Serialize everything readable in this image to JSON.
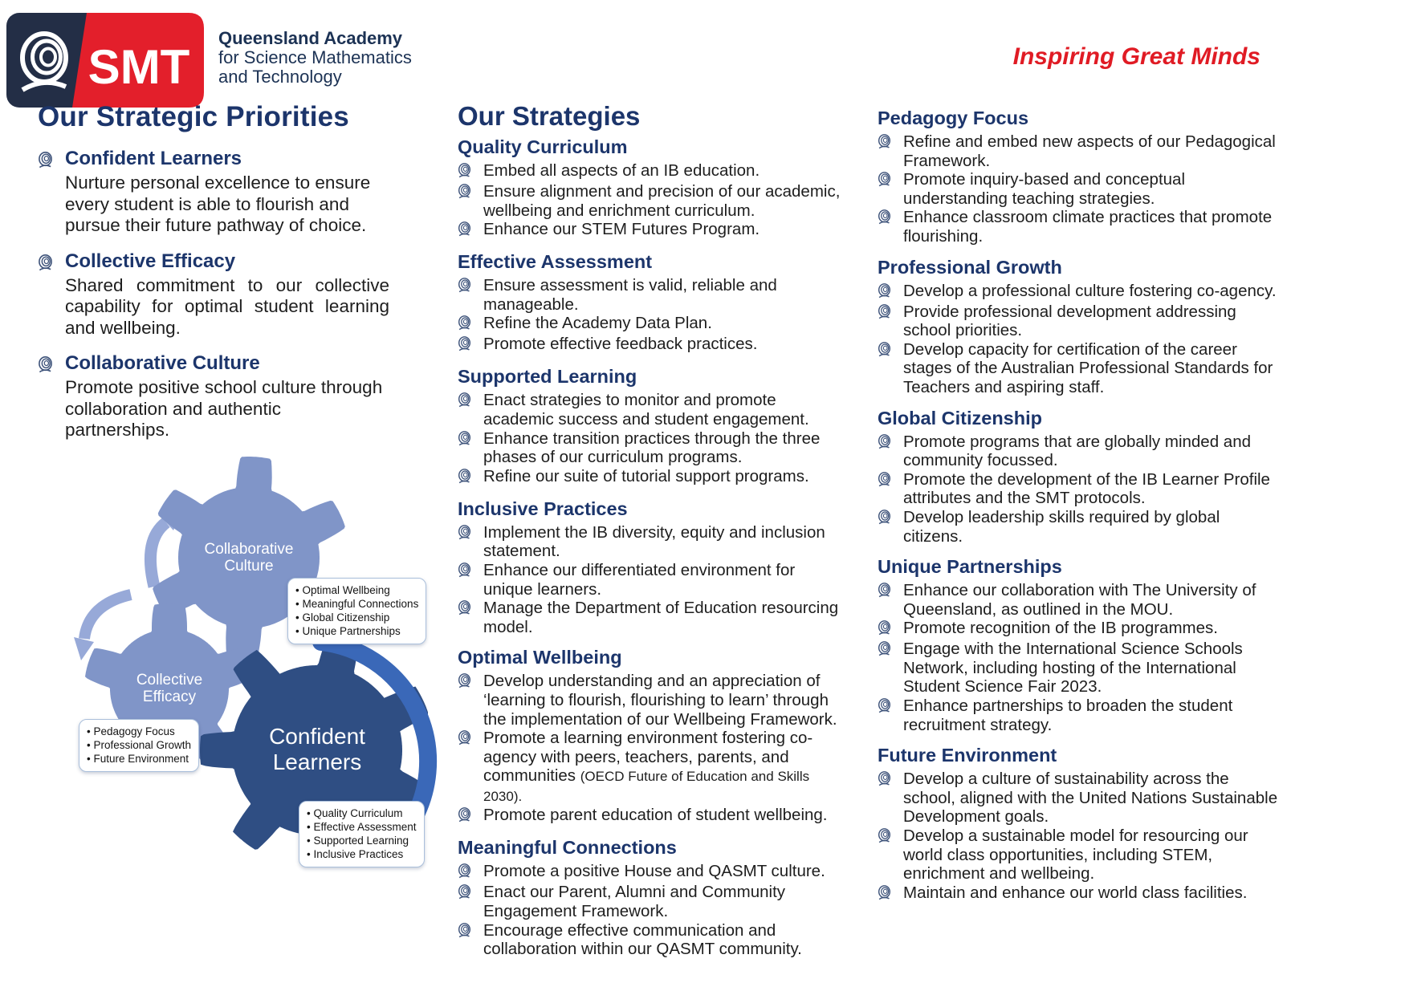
{
  "header": {
    "logo": {
      "acronym": "SMT",
      "mark_icon": "q-swirl-icon",
      "org_lines": [
        "Queensland Academy",
        "for Science Mathematics",
        "and Technology"
      ]
    },
    "tagline": "Inspiring Great Minds"
  },
  "colors": {
    "heading_navy": "#1c356b",
    "logo_navy": "#232e46",
    "brand_red": "#e31f2b",
    "tagline_red": "#e01b24",
    "gear_light_blue": "#8095c8",
    "gear_dark_blue": "#2f4e83",
    "arc_blue": "#3a68b8",
    "arrow_light_blue": "#97a9d8",
    "callout_border": "#aabfdb"
  },
  "strategic_priorities": {
    "title": "Our Strategic Priorities",
    "items": [
      {
        "title": "Confident Learners",
        "body": "Nurture personal excellence to ensure every student is able to flourish and pursue their future pathway of choice."
      },
      {
        "title": "Collective Efficacy",
        "body": "Shared commitment to our collective capability for optimal student learning and wellbeing."
      },
      {
        "title": "Collaborative Culture",
        "body": "Promote positive school culture through collaboration and authentic partnerships."
      }
    ]
  },
  "diagram": {
    "gears": [
      {
        "label_lines": [
          "Collaborative",
          "Culture"
        ],
        "callout": [
          "Optimal Wellbeing",
          "Meaningful Connections",
          "Global Citizenship",
          "Unique Partnerships"
        ]
      },
      {
        "label_lines": [
          "Collective",
          "Efficacy"
        ],
        "callout": [
          "Pedagogy Focus",
          "Professional Growth",
          "Future Environment"
        ]
      },
      {
        "label_lines": [
          "Confident",
          "Learners"
        ],
        "callout": [
          "Quality Curriculum",
          "Effective Assessment",
          "Supported Learning",
          "Inclusive Practices"
        ]
      }
    ],
    "arrows": [
      "cycle-arrow-upper",
      "cycle-arrow-left-down",
      "momentum-arc"
    ]
  },
  "strategies": {
    "title": "Our Strategies",
    "columns": [
      [
        {
          "heading": "Quality Curriculum",
          "bullets": [
            {
              "text": "Embed all aspects of an IB education."
            },
            {
              "text": "Ensure alignment and precision of our academic, wellbeing and enrichment curriculum."
            },
            {
              "text": "Enhance our STEM Futures Program."
            }
          ]
        },
        {
          "heading": "Effective Assessment",
          "bullets": [
            {
              "text": "Ensure assessment is valid, reliable and manageable."
            },
            {
              "text": "Refine the Academy Data Plan."
            },
            {
              "text": "Promote effective feedback practices."
            }
          ]
        },
        {
          "heading": "Supported Learning",
          "bullets": [
            {
              "text": "Enact strategies to monitor and promote academic success and student engagement."
            },
            {
              "text": "Enhance transition practices through the three phases of our curriculum programs."
            },
            {
              "text": "Refine our suite of tutorial support programs."
            }
          ]
        },
        {
          "heading": "Inclusive Practices",
          "bullets": [
            {
              "text": "Implement the IB diversity, equity and inclusion statement."
            },
            {
              "text": "Enhance our differentiated environment for unique learners."
            },
            {
              "text": "Manage the Department of Education resourcing model."
            }
          ]
        },
        {
          "heading": "Optimal Wellbeing",
          "bullets": [
            {
              "text": "Develop understanding and an appreciation of ‘learning to flourish, flourishing to learn’ through the implementation of our Wellbeing Framework."
            },
            {
              "text": "Promote a learning environment fostering co-agency with peers, teachers, parents, and communities ",
              "note": "(OECD Future of Education and Skills 2030)."
            },
            {
              "text": "Promote parent education of student wellbeing."
            }
          ]
        },
        {
          "heading": "Meaningful Connections",
          "bullets": [
            {
              "text": "Promote a positive House and QASMT culture."
            },
            {
              "text": "Enact our Parent, Alumni and Community Engagement Framework."
            },
            {
              "text": "Encourage effective communication and collaboration within our QASMT community."
            }
          ]
        }
      ],
      [
        {
          "heading": "Pedagogy Focus",
          "bullets": [
            {
              "text": "Refine and embed new aspects of our Pedagogical Framework."
            },
            {
              "text": "Promote inquiry-based and conceptual understanding teaching strategies."
            },
            {
              "text": "Enhance classroom climate practices that promote flourishing."
            }
          ]
        },
        {
          "heading": "Professional Growth",
          "bullets": [
            {
              "text": "Develop a professional culture fostering co-agency."
            },
            {
              "text": "Provide professional development addressing school priorities."
            },
            {
              "text": "Develop capacity for certification of the career stages of the Australian Professional Standards for Teachers and aspiring staff."
            }
          ]
        },
        {
          "heading": "Global Citizenship",
          "bullets": [
            {
              "text": "Promote programs that are globally minded and community focussed."
            },
            {
              "text": "Promote the development of the IB Learner Profile attributes and the SMT protocols."
            },
            {
              "text": "Develop leadership skills required by global citizens."
            }
          ]
        },
        {
          "heading": "Unique Partnerships",
          "bullets": [
            {
              "text": "Enhance our collaboration with The University of Queensland, as outlined in the MOU."
            },
            {
              "text": "Promote recognition of the IB programmes."
            },
            {
              "text": "Engage with the International Science Schools Network, including hosting of the International Student Science Fair 2023."
            },
            {
              "text": "Enhance partnerships to broaden the student recruitment strategy."
            }
          ]
        },
        {
          "heading": "Future Environment",
          "bullets": [
            {
              "text": "Develop a culture of sustainability across the school, aligned with the United Nations Sustainable Development goals."
            },
            {
              "text": "Develop a sustainable model for resourcing our world class opportunities, including STEM, enrichment and wellbeing."
            },
            {
              "text": "Maintain and enhance our world class facilities."
            }
          ]
        }
      ]
    ]
  }
}
